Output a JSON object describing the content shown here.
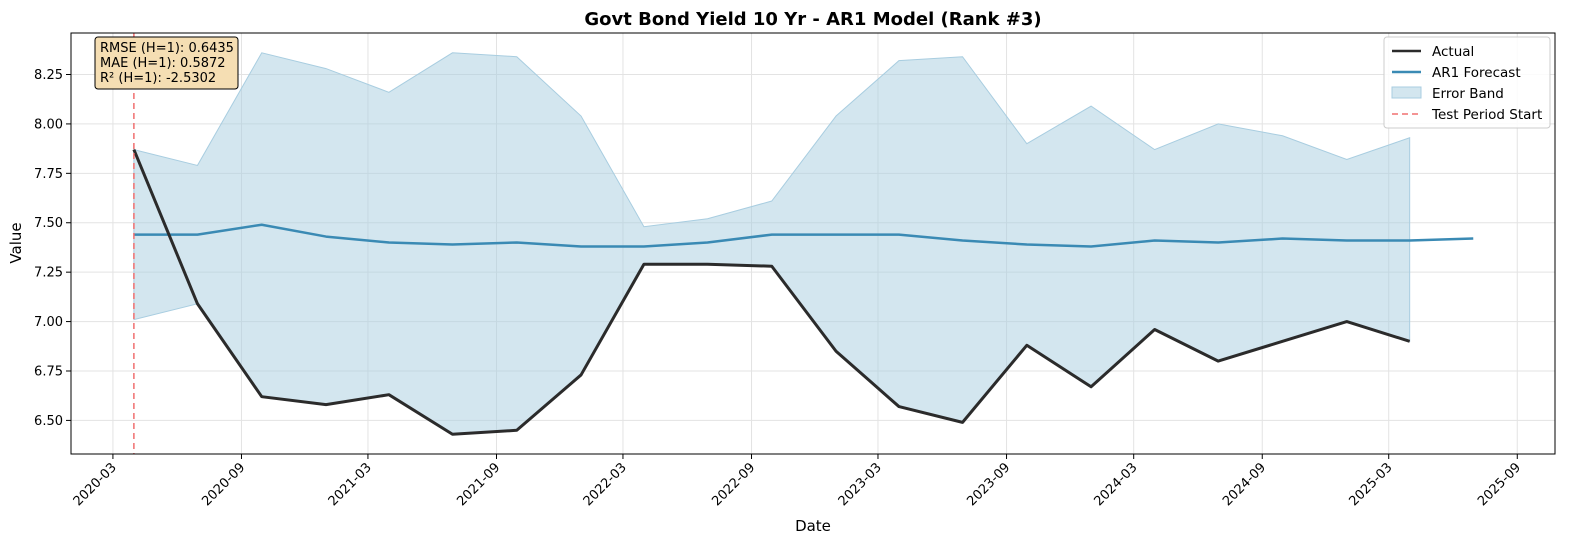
{
  "chart_data": {
    "type": "line",
    "title": "Govt Bond Yield 10 Yr - AR1 Model (Rank #3)",
    "xlabel": "Date",
    "ylabel": "Value",
    "xlim": [
      "2020-01-01",
      "2025-10-25"
    ],
    "ylim": [
      6.33,
      8.46
    ],
    "x_ticks": [
      "2020-03",
      "2020-09",
      "2021-03",
      "2021-09",
      "2022-03",
      "2022-09",
      "2023-03",
      "2023-09",
      "2024-03",
      "2024-09",
      "2025-03",
      "2025-09"
    ],
    "y_ticks": [
      "6.50",
      "6.75",
      "7.00",
      "7.25",
      "7.50",
      "7.75",
      "8.00",
      "8.25"
    ],
    "grid": true,
    "legend_position": "top-right",
    "test_period_start": "2020-03-31",
    "stats": {
      "rmse": "RMSE (H=1): 0.6435",
      "mae": "MAE (H=1): 0.5872",
      "r2": "R² (H=1): -2.5302"
    },
    "series": [
      {
        "name": "Actual",
        "color": "#2b2b2b",
        "x": [
          "2020-03-31",
          "2020-06-30",
          "2020-09-30",
          "2020-12-31",
          "2021-03-31",
          "2021-06-30",
          "2021-09-30",
          "2021-12-31",
          "2022-03-31",
          "2022-06-30",
          "2022-09-30",
          "2022-12-31",
          "2023-03-31",
          "2023-06-30",
          "2023-09-30",
          "2023-12-31",
          "2024-03-31",
          "2024-06-30",
          "2024-09-30",
          "2024-12-31",
          "2025-03-31"
        ],
        "values": [
          7.87,
          7.09,
          6.62,
          6.58,
          6.63,
          6.43,
          6.45,
          6.73,
          7.29,
          7.29,
          7.28,
          6.85,
          6.57,
          6.49,
          6.88,
          6.67,
          6.96,
          6.8,
          6.9,
          7.0,
          6.9
        ]
      },
      {
        "name": "AR1 Forecast",
        "color": "#3a8ab4",
        "x": [
          "2020-03-31",
          "2020-06-30",
          "2020-09-30",
          "2020-12-31",
          "2021-03-31",
          "2021-06-30",
          "2021-09-30",
          "2021-12-31",
          "2022-03-31",
          "2022-06-30",
          "2022-09-30",
          "2022-12-31",
          "2023-03-31",
          "2023-06-30",
          "2023-09-30",
          "2023-12-31",
          "2024-03-31",
          "2024-06-30",
          "2024-09-30",
          "2024-12-31",
          "2025-03-31",
          "2025-06-30"
        ],
        "values": [
          7.44,
          7.44,
          7.49,
          7.43,
          7.4,
          7.39,
          7.4,
          7.38,
          7.38,
          7.4,
          7.44,
          7.44,
          7.44,
          7.41,
          7.39,
          7.38,
          7.41,
          7.4,
          7.42,
          7.41,
          7.41,
          7.42
        ]
      },
      {
        "name": "Error Band",
        "color": "#a8cde0",
        "x": [
          "2020-03-31",
          "2020-06-30",
          "2020-09-30",
          "2020-12-31",
          "2021-03-31",
          "2021-06-30",
          "2021-09-30",
          "2021-12-31",
          "2022-03-31",
          "2022-06-30",
          "2022-09-30",
          "2022-12-31",
          "2023-03-31",
          "2023-06-30",
          "2023-09-30",
          "2023-12-31",
          "2024-03-31",
          "2024-06-30",
          "2024-09-30",
          "2024-12-31",
          "2025-03-31"
        ],
        "upper": [
          7.87,
          7.79,
          8.36,
          8.28,
          8.16,
          8.36,
          8.34,
          8.04,
          7.48,
          7.52,
          7.61,
          8.04,
          8.32,
          8.34,
          7.9,
          8.09,
          7.87,
          8.0,
          7.94,
          7.82,
          7.93
        ],
        "lower": [
          7.01,
          7.09,
          6.62,
          6.58,
          6.63,
          6.43,
          6.45,
          6.73,
          7.29,
          7.29,
          7.28,
          6.85,
          6.57,
          6.49,
          6.88,
          6.67,
          6.96,
          6.8,
          6.9,
          7.0,
          6.9
        ]
      }
    ],
    "legend": [
      {
        "label": "Actual",
        "kind": "line",
        "color": "#2b2b2b"
      },
      {
        "label": "AR1 Forecast",
        "kind": "line",
        "color": "#3a8ab4"
      },
      {
        "label": "Error Band",
        "kind": "patch",
        "color": "#a8cde0"
      },
      {
        "label": "Test Period Start",
        "kind": "dashed",
        "color": "#f07070"
      }
    ]
  }
}
